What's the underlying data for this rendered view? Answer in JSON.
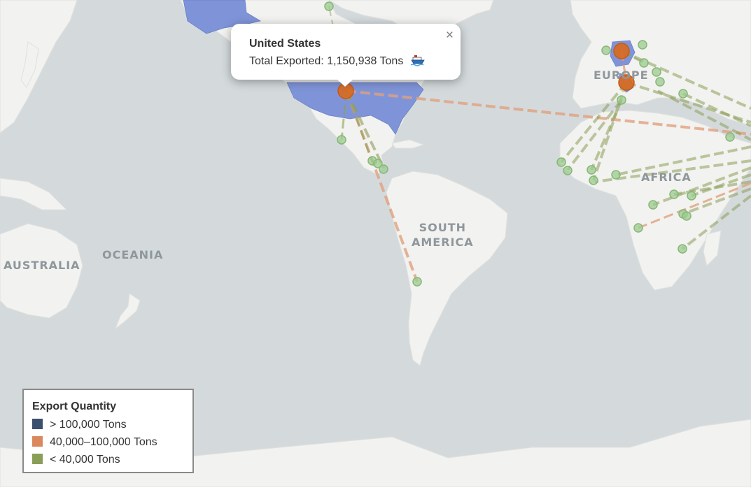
{
  "popup": {
    "country": "United States",
    "label": "Total Exported:",
    "value": "1,150,938 Tons",
    "icon": "ship-icon",
    "close_glyph": "×"
  },
  "continents": [
    {
      "name": "EUROPE",
      "label": "EUROPE"
    },
    {
      "name": "AFRICA",
      "label": "AFRICA"
    },
    {
      "name": "SOUTH AMERICA",
      "label": "SOUTH\nAMERICA"
    },
    {
      "name": "OCEANIA",
      "label": "OCEANIA"
    },
    {
      "name": "AUSTRALIA",
      "label": "AUSTRALIA"
    }
  ],
  "legend": {
    "title": "Export Quantity",
    "items": [
      {
        "label": "> 100,000 Tons",
        "color": "#3b4f6e"
      },
      {
        "label": "40,000–100,000 Tons",
        "color": "#d9895d"
      },
      {
        "label": "< 40,000 Tons",
        "color": "#8a9e58"
      }
    ]
  },
  "colors": {
    "ocean": "#d4dadc",
    "land": "#f2f2f0",
    "highlight_country": "#7f94d8",
    "route_medium": "#e0a07f",
    "route_small": "#8a9e58",
    "marker_medium": "#d9691f",
    "marker_small": "#9ccb8f"
  }
}
